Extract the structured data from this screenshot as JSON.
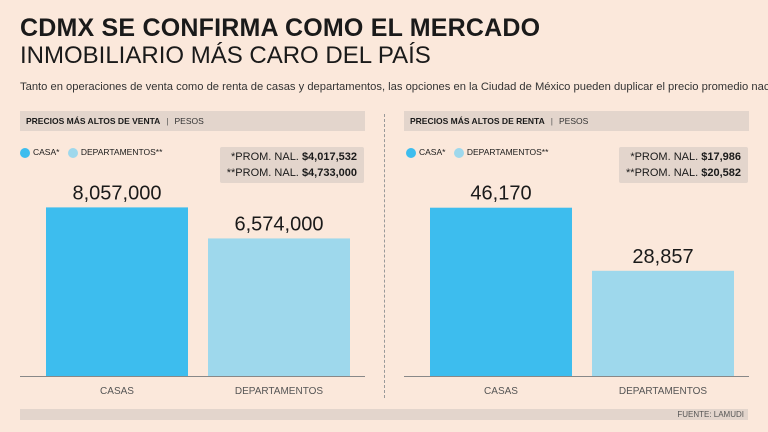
{
  "title_line1": "CDMX SE CONFIRMA COMO EL MERCADO",
  "title_line2": "INMOBILIARIO MÁS CARO DEL PAÍS",
  "subtitle": "Tanto en operaciones de venta como de renta de casas y departamentos, las opciones en la Ciudad de México pueden duplicar el precio promedio nacional.",
  "source": "FUENTE: LAMUDI",
  "colors": {
    "casa": "#3dbdee",
    "departamentos": "#9ed8ec"
  },
  "chart_data": [
    {
      "type": "bar",
      "panel_title": "PRECIOS MÁS ALTOS DE VENTA",
      "unit": "PESOS",
      "legend": [
        {
          "name": "CASA*",
          "color": "#3dbdee"
        },
        {
          "name": "DEPARTAMENTOS**",
          "color": "#9ed8ec"
        }
      ],
      "national_average": {
        "casa_label": "*PROM. NAL.",
        "casa_value": "$4,017,532",
        "dept_label": "**PROM. NAL.",
        "dept_value": "$4,733,000"
      },
      "categories": [
        "CASAS",
        "DEPARTAMENTOS"
      ],
      "values": [
        8057000,
        6574000
      ],
      "value_labels": [
        "8,057,000",
        "6,574,000"
      ],
      "ylim": [
        0,
        10800000
      ]
    },
    {
      "type": "bar",
      "panel_title": "PRECIOS MÁS ALTOS DE RENTA",
      "unit": "PESOS",
      "legend": [
        {
          "name": "CASA*",
          "color": "#3dbdee"
        },
        {
          "name": "DEPARTAMENTOS**",
          "color": "#9ed8ec"
        }
      ],
      "national_average": {
        "casa_label": "*PROM. NAL.",
        "casa_value": "$17,986",
        "dept_label": "**PROM. NAL.",
        "dept_value": "$20,582"
      },
      "categories": [
        "CASAS",
        "DEPARTAMENTOS"
      ],
      "values": [
        46170,
        28857
      ],
      "value_labels": [
        "46,170",
        "28,857"
      ],
      "ylim": [
        0,
        62000
      ]
    }
  ]
}
